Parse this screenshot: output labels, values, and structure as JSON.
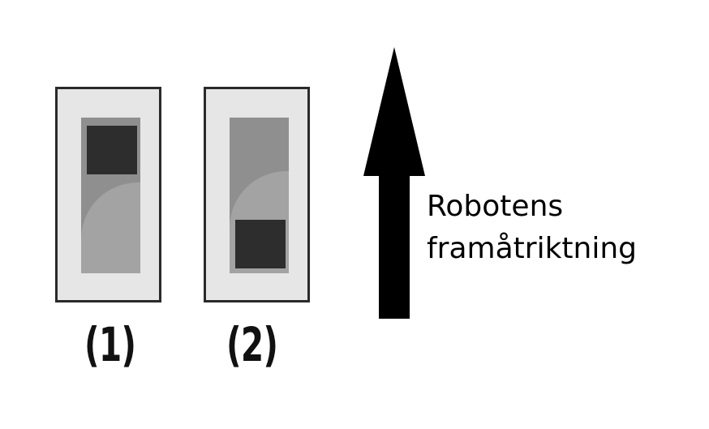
{
  "switches": [
    {
      "label": "(1)",
      "knob_position": "top"
    },
    {
      "label": "(2)",
      "knob_position": "bottom"
    }
  ],
  "arrow": {
    "direction": "up",
    "caption_lines": [
      "Robotens",
      "framåtriktning"
    ]
  },
  "colors": {
    "background": "#ffffff",
    "switch_body": "#e6e6e6",
    "switch_border": "#2a2a2a",
    "slot": "#8f8f8f",
    "knob": "#2d2d2d",
    "arrow": "#000000"
  }
}
